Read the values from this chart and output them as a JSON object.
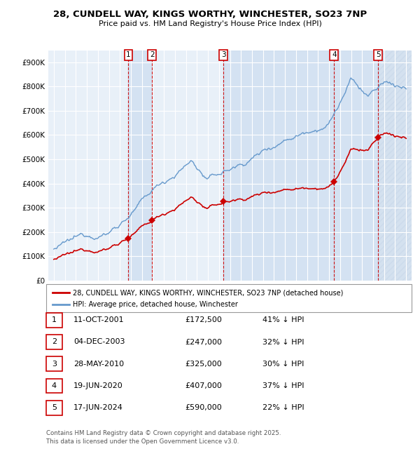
{
  "title_line1": "28, CUNDELL WAY, KINGS WORTHY, WINCHESTER, SO23 7NP",
  "title_line2": "Price paid vs. HM Land Registry's House Price Index (HPI)",
  "yticks": [
    0,
    100000,
    200000,
    300000,
    400000,
    500000,
    600000,
    700000,
    800000,
    900000
  ],
  "ytick_labels": [
    "£0",
    "£100K",
    "£200K",
    "£300K",
    "£400K",
    "£500K",
    "£600K",
    "£700K",
    "£800K",
    "£900K"
  ],
  "ymax": 950000,
  "xmin": 1994.5,
  "xmax": 2027.5,
  "purchases": [
    {
      "num": 1,
      "year": 2001.78,
      "price": 172500,
      "date": "11-OCT-2001",
      "pct": "41%"
    },
    {
      "num": 2,
      "year": 2003.92,
      "price": 247000,
      "date": "04-DEC-2003",
      "pct": "32%"
    },
    {
      "num": 3,
      "year": 2010.4,
      "price": 325000,
      "date": "28-MAY-2010",
      "pct": "30%"
    },
    {
      "num": 4,
      "year": 2020.46,
      "price": 407000,
      "date": "19-JUN-2020",
      "pct": "37%"
    },
    {
      "num": 5,
      "year": 2024.46,
      "price": 590000,
      "date": "17-JUN-2024",
      "pct": "22%"
    }
  ],
  "price_color": "#cc0000",
  "hpi_color": "#6699cc",
  "legend_label_price": "28, CUNDELL WAY, KINGS WORTHY, WINCHESTER, SO23 7NP (detached house)",
  "legend_label_hpi": "HPI: Average price, detached house, Winchester",
  "footer": "Contains HM Land Registry data © Crown copyright and database right 2025.\nThis data is licensed under the Open Government Licence v3.0.",
  "background_color": "#dce8f5",
  "chart_bg": "#e8f0f8"
}
